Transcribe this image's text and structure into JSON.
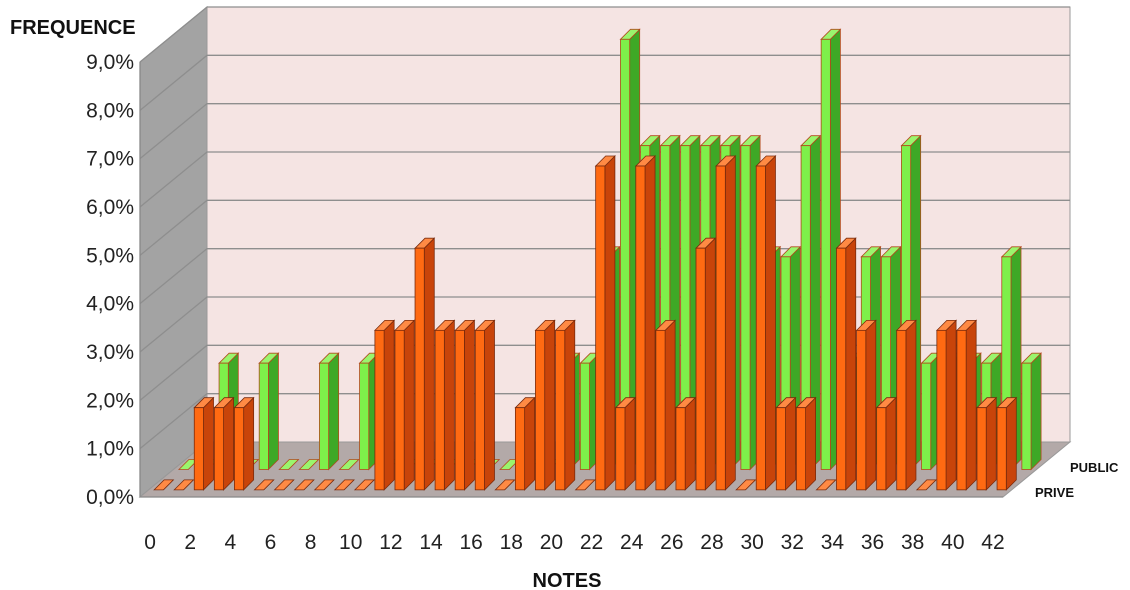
{
  "chart_data": {
    "type": "bar",
    "title": "",
    "xlabel": "NOTES",
    "ylabel": "FREQUENCE",
    "ylim": [
      0,
      9
    ],
    "ytick_labels": [
      "0,0%",
      "1,0%",
      "2,0%",
      "3,0%",
      "4,0%",
      "5,0%",
      "6,0%",
      "7,0%",
      "8,0%",
      "9,0%"
    ],
    "x_tick_labels": [
      "0",
      "2",
      "4",
      "6",
      "8",
      "10",
      "12",
      "14",
      "16",
      "18",
      "20",
      "22",
      "24",
      "26",
      "28",
      "30",
      "32",
      "34",
      "36",
      "38",
      "40",
      "42"
    ],
    "categories": [
      "0",
      "1",
      "2",
      "3",
      "4",
      "5",
      "6",
      "7",
      "8",
      "9",
      "10",
      "11",
      "12",
      "13",
      "14",
      "15",
      "16",
      "17",
      "18",
      "19",
      "20",
      "21",
      "22",
      "23",
      "24",
      "25",
      "26",
      "27",
      "28",
      "29",
      "30",
      "31",
      "32",
      "33",
      "34",
      "35",
      "36",
      "37",
      "38",
      "39",
      "40",
      "41",
      "42"
    ],
    "grid": true,
    "series": [
      {
        "name": "PUBLIC",
        "color": "#5bbf2a",
        "values": [
          0,
          0,
          2.2,
          0,
          2.2,
          0,
          0,
          2.2,
          0,
          2.2,
          0,
          0,
          0,
          0,
          0,
          0,
          0,
          0,
          0,
          2.2,
          2.2,
          4.4,
          8.9,
          6.7,
          6.7,
          6.7,
          6.7,
          6.7,
          6.7,
          4.4,
          4.4,
          6.7,
          8.9,
          2.2,
          4.4,
          4.4,
          6.7,
          2.2,
          2.2,
          2.2,
          2.2,
          4.4,
          2.2
        ]
      },
      {
        "name": "PRIVE",
        "color": "#d9531e",
        "values": [
          0,
          0,
          1.7,
          1.7,
          1.7,
          0,
          0,
          0,
          0,
          0,
          0,
          3.3,
          3.3,
          5.0,
          3.3,
          3.3,
          3.3,
          0,
          1.7,
          3.3,
          3.3,
          0,
          6.7,
          1.7,
          6.7,
          3.3,
          1.7,
          5.0,
          6.7,
          0,
          6.7,
          1.7,
          1.7,
          0,
          5.0,
          3.3,
          1.7,
          3.3,
          0,
          3.3,
          3.3,
          1.7,
          1.7
        ]
      }
    ]
  }
}
